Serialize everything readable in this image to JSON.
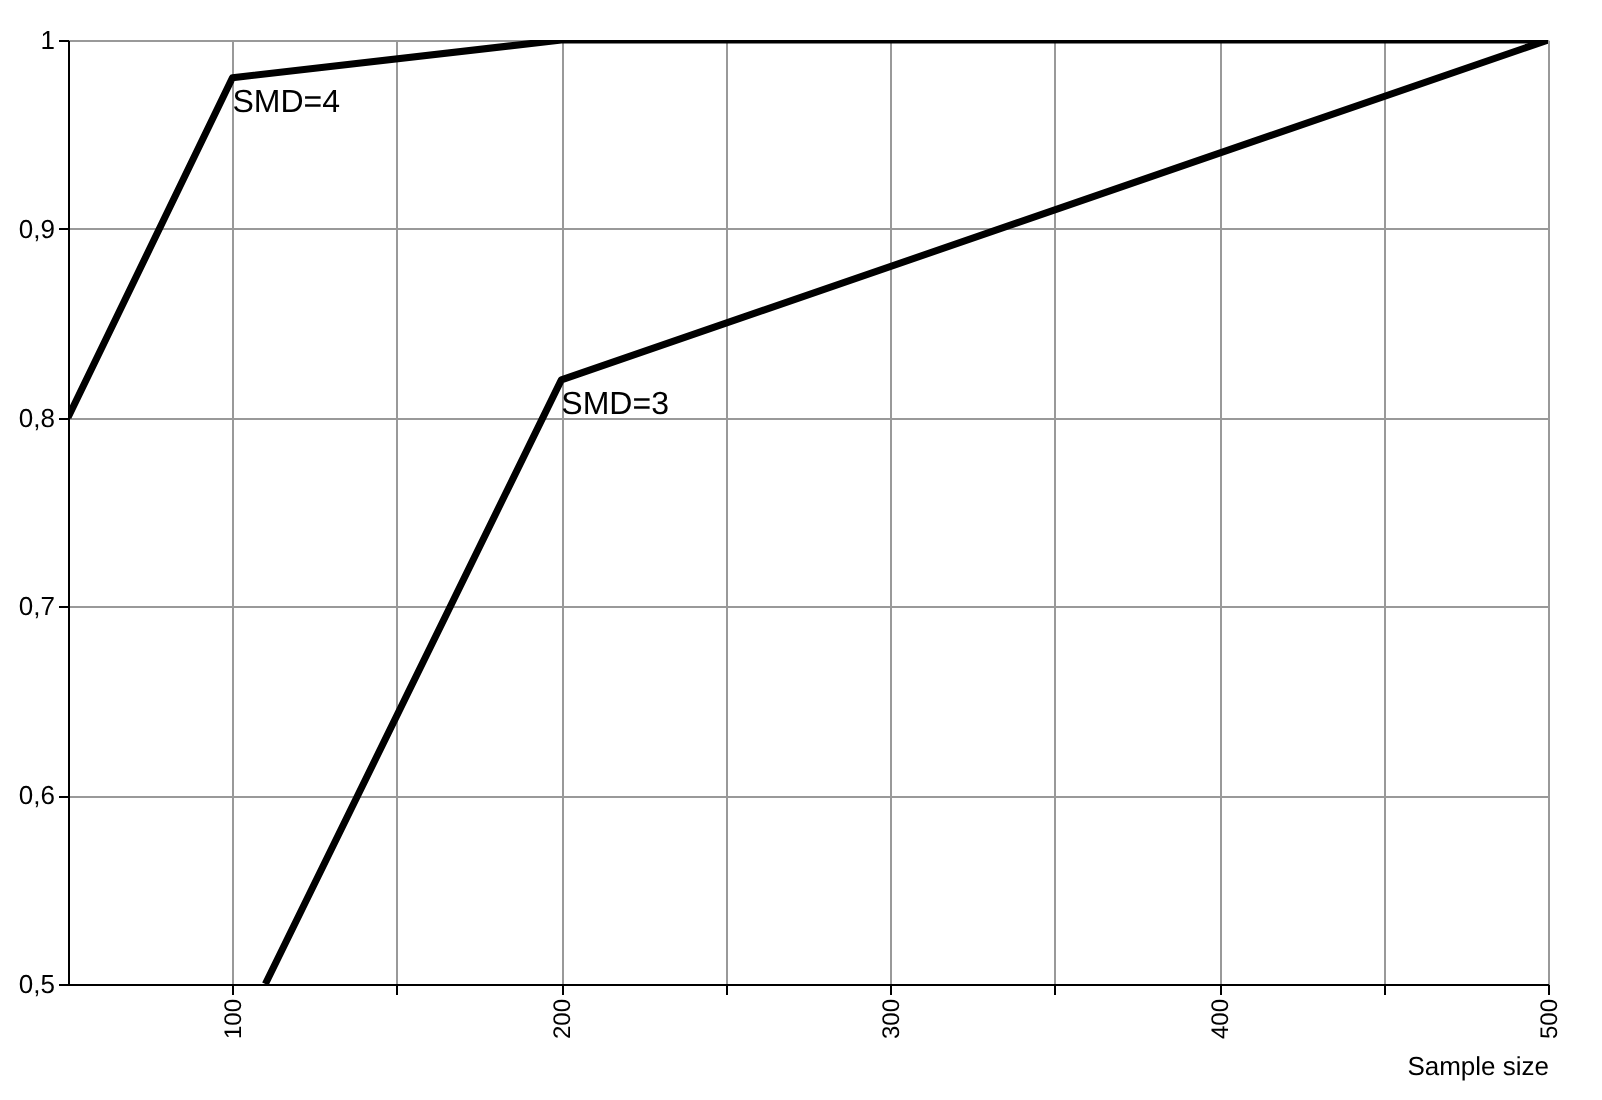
{
  "chart_data": {
    "type": "line",
    "xlabel": "Sample size",
    "series": [
      {
        "color": "#000000",
        "x": [
          50,
          100,
          200,
          500
        ],
        "values": [
          0.8,
          0.98,
          1.0,
          1.0
        ]
      },
      {
        "color": "#000000",
        "x": [
          110,
          200,
          500
        ],
        "values": [
          0.5,
          0.82,
          1.0
        ]
      }
    ],
    "xlim": [
      50,
      500
    ],
    "xticks": [
      100,
      {
        "value": 150,
        "label": null
      },
      200,
      {
        "value": 250,
        "label": null
      },
      300,
      {
        "value": 350,
        "label": null
      },
      400,
      {
        "value": 450,
        "label": null
      },
      500
    ],
    "ylim": [
      0.5,
      1
    ],
    "yticks": [
      {
        "value": 0.5,
        "label": "0,5"
      },
      {
        "value": 0.6,
        "label": "0,6"
      },
      {
        "value": 0.7,
        "label": "0,7"
      },
      {
        "value": 0.8,
        "label": "0,8"
      },
      {
        "value": 0.9,
        "label": "0,9"
      },
      {
        "value": 1,
        "label": "1"
      }
    ],
    "annotations": [
      {
        "text": "SMD=4",
        "x": 100,
        "y": 0.98
      },
      {
        "text": "SMD=3",
        "x": 200,
        "y": 0.82
      }
    ],
    "grid": true,
    "marker": "none",
    "line_style": "solid"
  }
}
